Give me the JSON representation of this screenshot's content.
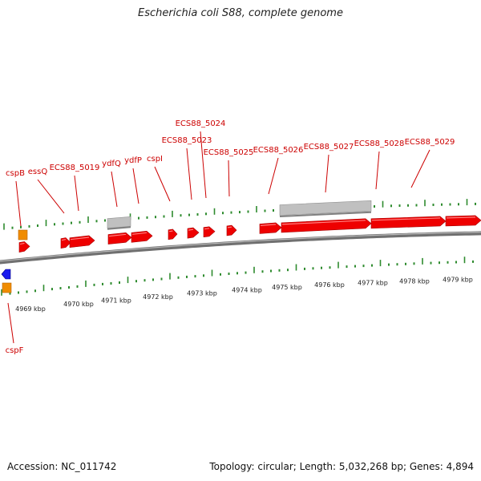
{
  "title": "Escherichia coli S88, complete genome",
  "accession": "Accession: NC_011742",
  "summary": "Topology: circular; Length: 5,032,268 bp; Genes: 4,894",
  "colors": {
    "forward_gene": "#ee0000",
    "reverse_gene": "#1a1aee",
    "rna_feature": "#f08c00",
    "pseudo_feature": "#c0c0c0",
    "backbone": "#808080",
    "tick": "#2e8b2e",
    "label_forward": "#cc0000",
    "label_reverse": "#1a1acc"
  },
  "kbp_labels": [
    "4969 kbp",
    "4970 kbp",
    "4971 kbp",
    "4972 kbp",
    "4973 kbp",
    "4974 kbp",
    "4975 kbp",
    "4976 kbp",
    "4977 kbp",
    "4978 kbp",
    "4979 kbp"
  ],
  "gene_labels": [
    "cspB",
    "essQ",
    "ECS88_5019",
    "ydfQ",
    "ydfP",
    "cspI",
    "ECS88_5023",
    "ECS88_5024",
    "ECS88_5025",
    "ECS88_5026",
    "ECS88_5027",
    "ECS88_5028",
    "ECS88_5029",
    "cspF"
  ]
}
